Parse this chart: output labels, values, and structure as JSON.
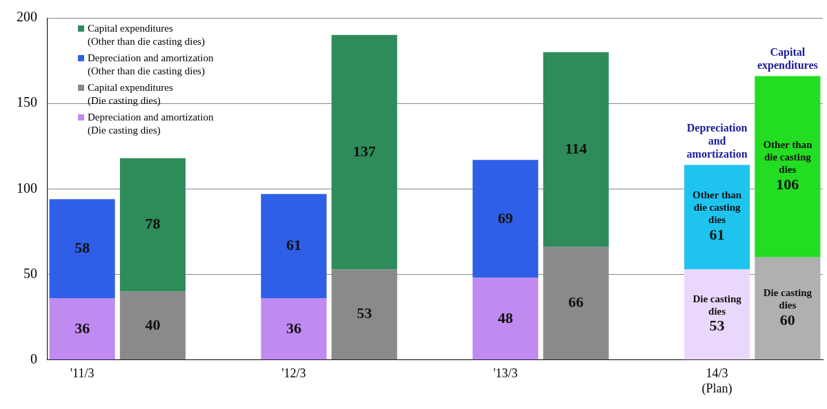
{
  "chart_data": {
    "type": "bar",
    "stacked": true,
    "categories": [
      "'11/3",
      null,
      null,
      "'12/3",
      null,
      null,
      "'13/3",
      null,
      null,
      "14/3\n(Plan)",
      null
    ],
    "series": [
      {
        "name": "Depreciation and amortization\n(Die casting dies)",
        "color": "#c08af0",
        "colors": [
          "#c08af0",
          null,
          null,
          "#c08af0",
          null,
          null,
          "#c08af0",
          null,
          null,
          "#ead8fc",
          null
        ],
        "values": [
          36,
          null,
          null,
          36,
          null,
          null,
          48,
          null,
          null,
          53,
          null
        ],
        "value_labels": [
          "36",
          null,
          null,
          "36",
          null,
          null,
          "48",
          null,
          null,
          "Die casting\ndies\n53",
          null
        ]
      },
      {
        "name": "Capital expenditures\n(Die casting dies)",
        "color": "#8a8a8a",
        "colors": [
          null,
          "#8a8a8a",
          null,
          null,
          "#8a8a8a",
          null,
          null,
          "#8a8a8a",
          null,
          null,
          "#b0b0b0"
        ],
        "values": [
          null,
          40,
          null,
          null,
          53,
          null,
          null,
          66,
          null,
          null,
          60
        ],
        "value_labels": [
          null,
          "40",
          null,
          null,
          "53",
          null,
          null,
          "66",
          null,
          null,
          "Die casting\ndies\n60"
        ]
      },
      {
        "name": "Depreciation and amortization\n(Other than die casting dies)",
        "color": "#2f5fe6",
        "colors": [
          "#2f5fe6",
          null,
          null,
          "#2f5fe6",
          null,
          null,
          "#2f5fe6",
          null,
          null,
          "#1ec4ee",
          null
        ],
        "values": [
          58,
          null,
          null,
          61,
          null,
          null,
          69,
          null,
          null,
          61,
          null
        ],
        "value_labels": [
          "58",
          null,
          null,
          "61",
          null,
          null,
          "69",
          null,
          null,
          "Other than\ndie casting\ndies\n61",
          null
        ]
      },
      {
        "name": "Capital expenditures\n(Other than die casting dies)",
        "color": "#2e8b5a",
        "colors": [
          null,
          "#2e8b5a",
          null,
          null,
          "#2e8b5a",
          null,
          null,
          "#2e8b5a",
          null,
          null,
          "#22dd22"
        ],
        "values": [
          null,
          78,
          null,
          null,
          137,
          null,
          null,
          114,
          null,
          null,
          106
        ],
        "value_labels": [
          null,
          "78",
          null,
          null,
          "137",
          null,
          null,
          "114",
          null,
          null,
          "Other than\ndie casting\ndies\n106"
        ]
      }
    ],
    "ylim": [
      0,
      200
    ],
    "yticks": [
      0,
      50,
      100,
      150,
      200
    ],
    "grid": "y",
    "legend": "top left",
    "data_labels": true,
    "annotations": [
      "Depreciation\nand\namortization",
      "Capital\nexpenditures"
    ]
  }
}
